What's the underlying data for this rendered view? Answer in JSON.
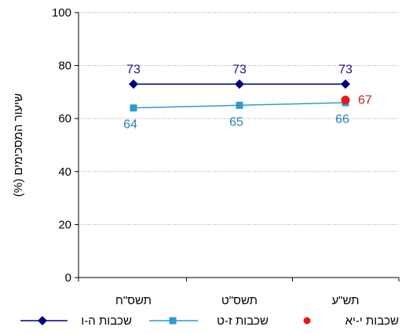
{
  "chart_data": {
    "type": "line",
    "title": "",
    "xlabel": "",
    "ylabel": "שיעור המסכימים (%)",
    "ylim": [
      0,
      100
    ],
    "yticks": [
      0,
      20,
      40,
      60,
      80,
      100
    ],
    "grid": true,
    "legend_position": "bottom",
    "categories": [
      "תשס\"ח",
      "תשס\"ט",
      "תש\"ע"
    ],
    "series": [
      {
        "name": "שכבות ה-ו",
        "values": [
          73,
          73,
          73
        ],
        "color": "#000080",
        "label_color": "#1a1a80",
        "marker": "diamond",
        "label_position": "above"
      },
      {
        "name": "שכבות ז-ט",
        "values": [
          64,
          65,
          66
        ],
        "color": "#3399cc",
        "label_color": "#2b7fb5",
        "marker": "square",
        "label_position": "below"
      },
      {
        "name": "שכבות י-יא",
        "values": [
          null,
          null,
          67
        ],
        "color": "#e51a1a",
        "label_color": "#cc2222",
        "marker": "circle",
        "label_position": "right"
      }
    ]
  }
}
